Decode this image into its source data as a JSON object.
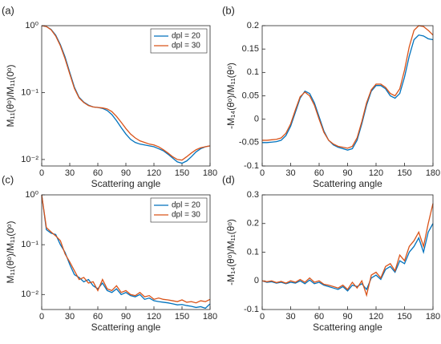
{
  "chart_data": [
    {
      "type": "line",
      "label": "(a)",
      "xlabel": "Scattering angle",
      "ylabel": "M₁₁(θᵒ)/M₁₁(0ᵒ)",
      "log_y": true,
      "legend": "upper right",
      "x": [
        0,
        5,
        10,
        15,
        20,
        25,
        30,
        35,
        40,
        45,
        50,
        55,
        60,
        65,
        70,
        75,
        80,
        85,
        90,
        95,
        100,
        105,
        110,
        115,
        120,
        125,
        130,
        135,
        140,
        145,
        150,
        155,
        160,
        165,
        170,
        175,
        180
      ],
      "series": [
        {
          "name": "dpl = 20",
          "color": "#0072bd",
          "values": [
            1,
            0.97,
            0.88,
            0.72,
            0.52,
            0.34,
            0.2,
            0.12,
            0.085,
            0.072,
            0.065,
            0.061,
            0.06,
            0.058,
            0.054,
            0.047,
            0.038,
            0.03,
            0.024,
            0.02,
            0.018,
            0.017,
            0.0165,
            0.016,
            0.0155,
            0.0145,
            0.0135,
            0.012,
            0.0105,
            0.0092,
            0.0088,
            0.0095,
            0.011,
            0.013,
            0.0145,
            0.0155,
            0.016
          ]
        },
        {
          "name": "dpl = 30",
          "color": "#d95319",
          "values": [
            1,
            0.97,
            0.87,
            0.7,
            0.5,
            0.32,
            0.19,
            0.115,
            0.083,
            0.071,
            0.064,
            0.061,
            0.06,
            0.059,
            0.057,
            0.052,
            0.044,
            0.036,
            0.029,
            0.024,
            0.021,
            0.019,
            0.018,
            0.017,
            0.0165,
            0.0155,
            0.014,
            0.0125,
            0.011,
            0.01,
            0.0098,
            0.011,
            0.0125,
            0.014,
            0.015,
            0.0155,
            0.016
          ]
        }
      ],
      "xlim": [
        0,
        180
      ],
      "xticks": [
        0,
        30,
        60,
        90,
        120,
        150,
        180
      ],
      "ylim": [
        0.008,
        1
      ],
      "yticks": [
        {
          "value": 0.01,
          "label": "10⁻²"
        },
        {
          "value": 0.1,
          "label": "10⁻¹"
        },
        {
          "value": 1,
          "label": "10⁰"
        }
      ]
    },
    {
      "type": "line",
      "label": "(b)",
      "xlabel": "Scattering angle",
      "ylabel": "-M₁₄(θᵒ)/M₁₁(θᵒ)",
      "log_y": false,
      "x": [
        0,
        5,
        10,
        15,
        20,
        25,
        30,
        35,
        40,
        45,
        50,
        55,
        60,
        65,
        70,
        75,
        80,
        85,
        90,
        95,
        100,
        105,
        110,
        115,
        120,
        125,
        130,
        135,
        140,
        145,
        150,
        155,
        160,
        165,
        170,
        175,
        180
      ],
      "series": [
        {
          "name": "dpl = 20",
          "color": "#0072bd",
          "values": [
            -0.05,
            -0.05,
            -0.049,
            -0.048,
            -0.045,
            -0.035,
            -0.015,
            0.015,
            0.045,
            0.06,
            0.055,
            0.035,
            0.005,
            -0.025,
            -0.045,
            -0.055,
            -0.06,
            -0.063,
            -0.066,
            -0.063,
            -0.045,
            -0.01,
            0.03,
            0.06,
            0.072,
            0.072,
            0.065,
            0.05,
            0.045,
            0.055,
            0.09,
            0.135,
            0.17,
            0.18,
            0.178,
            0.172,
            0.17
          ]
        },
        {
          "name": "dpl = 30",
          "color": "#d95319",
          "values": [
            -0.045,
            -0.045,
            -0.044,
            -0.043,
            -0.04,
            -0.03,
            -0.01,
            0.02,
            0.048,
            0.058,
            0.05,
            0.03,
            0,
            -0.028,
            -0.045,
            -0.053,
            -0.058,
            -0.06,
            -0.062,
            -0.058,
            -0.04,
            -0.005,
            0.035,
            0.063,
            0.075,
            0.075,
            0.068,
            0.055,
            0.05,
            0.065,
            0.105,
            0.155,
            0.19,
            0.2,
            0.198,
            0.19,
            0.18
          ]
        }
      ],
      "xlim": [
        0,
        180
      ],
      "xticks": [
        0,
        30,
        60,
        90,
        120,
        150,
        180
      ],
      "ylim": [
        -0.1,
        0.2
      ],
      "yticks": [
        -0.1,
        -0.05,
        0,
        0.05,
        0.1,
        0.15,
        0.2
      ]
    },
    {
      "type": "line",
      "label": "(c)",
      "xlabel": "Scattering angle",
      "ylabel": "M₁₁(θᵒ)/M₁₁(0ᵒ)",
      "log_y": true,
      "legend": "upper right",
      "x": [
        0,
        5,
        10,
        15,
        20,
        25,
        30,
        35,
        40,
        45,
        50,
        55,
        60,
        65,
        70,
        75,
        80,
        85,
        90,
        95,
        100,
        105,
        110,
        115,
        120,
        125,
        130,
        135,
        140,
        145,
        150,
        155,
        160,
        165,
        170,
        175,
        180
      ],
      "series": [
        {
          "name": "dpl = 20",
          "color": "#0072bd",
          "values": [
            1,
            0.2,
            0.17,
            0.16,
            0.1,
            0.07,
            0.04,
            0.025,
            0.022,
            0.018,
            0.02,
            0.015,
            0.013,
            0.017,
            0.012,
            0.011,
            0.013,
            0.01,
            0.011,
            0.0095,
            0.009,
            0.01,
            0.008,
            0.0085,
            0.0075,
            0.0072,
            0.007,
            0.0068,
            0.0065,
            0.0062,
            0.0063,
            0.006,
            0.0058,
            0.0055,
            0.0057,
            0.0053,
            0.0065
          ]
        },
        {
          "name": "dpl = 30",
          "color": "#d95319",
          "values": [
            1,
            0.22,
            0.18,
            0.15,
            0.12,
            0.065,
            0.045,
            0.03,
            0.02,
            0.022,
            0.017,
            0.018,
            0.012,
            0.02,
            0.013,
            0.012,
            0.015,
            0.011,
            0.012,
            0.01,
            0.0095,
            0.011,
            0.009,
            0.0095,
            0.008,
            0.0085,
            0.008,
            0.0078,
            0.0075,
            0.0072,
            0.0078,
            0.007,
            0.0072,
            0.0068,
            0.0075,
            0.0072,
            0.008
          ]
        }
      ],
      "xlim": [
        0,
        180
      ],
      "xticks": [
        0,
        30,
        60,
        90,
        120,
        150,
        180
      ],
      "ylim": [
        0.005,
        1
      ],
      "yticks": [
        {
          "value": 0.01,
          "label": "10⁻²"
        },
        {
          "value": 0.1,
          "label": "10⁻¹"
        },
        {
          "value": 1,
          "label": "10⁰"
        }
      ]
    },
    {
      "type": "line",
      "label": "(d)",
      "xlabel": "Scattering angle",
      "ylabel": "-M₁₄(θᵒ)/M₁₁(θᵒ)",
      "log_y": false,
      "x": [
        0,
        5,
        10,
        15,
        20,
        25,
        30,
        35,
        40,
        45,
        50,
        55,
        60,
        65,
        70,
        75,
        80,
        85,
        90,
        95,
        100,
        105,
        110,
        115,
        120,
        125,
        130,
        135,
        140,
        145,
        150,
        155,
        160,
        165,
        170,
        175,
        180
      ],
      "series": [
        {
          "name": "dpl = 20",
          "color": "#0072bd",
          "values": [
            0,
            -0.005,
            -0.003,
            -0.008,
            -0.005,
            -0.01,
            -0.005,
            -0.008,
            0,
            -0.01,
            0.003,
            -0.01,
            -0.005,
            -0.015,
            -0.02,
            -0.025,
            -0.03,
            -0.02,
            -0.035,
            -0.015,
            -0.02,
            -0.01,
            -0.03,
            0.01,
            0.02,
            0.005,
            0.04,
            0.05,
            0.03,
            0.07,
            0.06,
            0.1,
            0.12,
            0.15,
            0.1,
            0.17,
            0.2
          ]
        },
        {
          "name": "dpl = 30",
          "color": "#d95319",
          "values": [
            0,
            -0.003,
            0,
            -0.006,
            -0.002,
            -0.008,
            0,
            -0.005,
            0.005,
            -0.005,
            0.01,
            -0.005,
            0,
            -0.012,
            -0.015,
            -0.02,
            -0.025,
            -0.015,
            -0.03,
            -0.005,
            -0.025,
            0,
            -0.05,
            0.02,
            0.03,
            0.01,
            0.05,
            0.06,
            0.035,
            0.09,
            0.07,
            0.12,
            0.14,
            0.17,
            0.12,
            0.2,
            0.27
          ]
        }
      ],
      "xlim": [
        0,
        180
      ],
      "xticks": [
        0,
        30,
        60,
        90,
        120,
        150,
        180
      ],
      "ylim": [
        -0.1,
        0.3
      ],
      "yticks": [
        -0.1,
        0,
        0.1,
        0.2,
        0.3
      ]
    }
  ]
}
